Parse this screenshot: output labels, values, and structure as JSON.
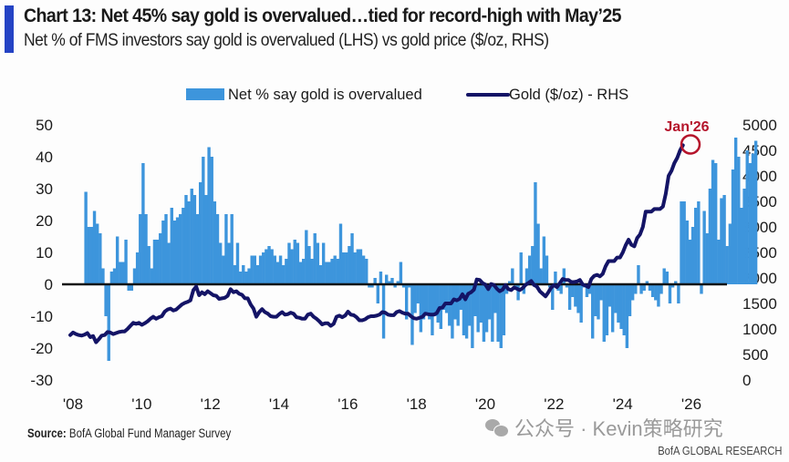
{
  "header": {
    "title": "Chart 13: Net 45% say gold is overvalued…tied for record-high with May’25",
    "subtitle": "Net % of FMS investors say gold is overvalued (LHS) vs gold price ($/oz, RHS)"
  },
  "footer": {
    "source_label": "Source:",
    "source_text": " BofA Global Fund Manager Survey",
    "watermark": "公众号 · Kevin策略研究",
    "brand": "BofA GLOBAL RESEARCH"
  },
  "colors": {
    "bars": "#3d95dc",
    "line": "#141466",
    "annotation": "#b5142b",
    "zero_line": "#111111",
    "title_accent": "#2443c4"
  },
  "chart_data": {
    "type": "bar+line",
    "title": "Chart 13: Net 45% say gold is overvalued…tied for record-high with May’25",
    "subtitle": "Net % of FMS investors say gold is overvalued (LHS) vs gold price ($/oz, RHS)",
    "legend": {
      "position": "top",
      "entries": [
        "Net % say gold is overvalued",
        "Gold ($/oz) - RHS"
      ]
    },
    "x_axis": {
      "tick_labels": [
        "'08",
        "'10",
        "'12",
        "'14",
        "'16",
        "'18",
        "'20",
        "'22",
        "'24",
        "'26"
      ],
      "range": [
        2008.0,
        2026.5
      ]
    },
    "y_left": {
      "label": "Net % say gold is overvalued",
      "ticks": [
        50,
        40,
        30,
        20,
        10,
        0,
        -10,
        -20,
        -30
      ],
      "range": [
        -30,
        50
      ]
    },
    "y_right": {
      "label": "Gold ($/oz)",
      "ticks": [
        5000,
        4500,
        4000,
        3500,
        3000,
        2500,
        2000,
        1500,
        1000,
        500,
        0
      ],
      "range": [
        0,
        5000
      ]
    },
    "annotation": {
      "label": "Jan'26",
      "x": 2026.0,
      "value_lhs": 45,
      "value_rhs": 4600
    },
    "bars": {
      "name": "Net % say gold is overvalued",
      "start": 2008.33,
      "step_months": 1,
      "values": [
        29,
        18,
        18,
        23,
        19,
        16,
        5,
        -10,
        -24,
        4,
        5,
        15,
        7,
        7,
        14,
        -2,
        -2,
        5,
        10,
        22,
        38,
        22,
        12,
        5,
        14,
        14,
        16,
        20,
        22,
        13,
        24,
        20,
        21,
        22,
        24,
        28,
        26,
        30,
        28,
        22,
        32,
        40,
        28,
        43,
        40,
        26,
        22,
        13,
        9,
        22,
        13,
        22,
        6,
        13,
        4,
        6,
        4,
        5,
        9,
        9,
        6,
        9,
        10,
        11,
        12,
        11,
        9,
        7,
        9,
        6,
        8,
        13,
        11,
        14,
        13,
        7,
        8,
        17,
        12,
        8,
        16,
        13,
        6,
        13,
        7,
        7,
        8,
        9,
        8,
        19,
        10,
        10,
        12,
        16,
        10,
        11,
        11,
        9,
        8,
        -1,
        -1,
        2,
        -6,
        4,
        -17,
        3,
        1,
        2,
        -1,
        1,
        7,
        -1,
        -11,
        -1,
        -19,
        -9,
        -6,
        -15,
        -11,
        -9,
        -11,
        -16,
        -10,
        -12,
        -14,
        -8,
        -9,
        -13,
        -17,
        -11,
        -13,
        -8,
        -16,
        -17,
        -13,
        -20,
        -10,
        -15,
        -12,
        -18,
        -15,
        -11,
        -18,
        -9,
        -18,
        -20,
        -16,
        -3,
        1,
        5,
        -1,
        -5,
        10,
        -3,
        5,
        9,
        12,
        32,
        19,
        5,
        15,
        9,
        -1,
        -8,
        4,
        -2,
        -3,
        5,
        -1,
        -8,
        -4,
        -7,
        -9,
        -12,
        -1,
        -4,
        -3,
        -17,
        -10,
        -11,
        -5,
        -18,
        -16,
        -7,
        -15,
        -9,
        -12,
        -14,
        -16,
        -20,
        -10,
        -5,
        -3,
        6,
        -3,
        -2,
        1,
        -2,
        -4,
        -5,
        -7,
        -3,
        5,
        4,
        -6,
        -1,
        1,
        -6,
        26,
        26,
        20,
        14,
        18,
        24,
        26,
        -3,
        23,
        16,
        30,
        39,
        38,
        14,
        27,
        28,
        12,
        19,
        36,
        46,
        40,
        24,
        30,
        42,
        38,
        41,
        45
      ]
    },
    "line": {
      "name": "Gold ($/oz) - RHS",
      "start": 2008.0,
      "step_months": 1,
      "values": [
        880,
        930,
        900,
        880,
        870,
        890,
        920,
        840,
        860,
        740,
        800,
        870,
        880,
        940,
        930,
        900,
        920,
        940,
        950,
        950,
        1000,
        1060,
        1120,
        1100,
        1120,
        1080,
        1110,
        1150,
        1200,
        1240,
        1200,
        1230,
        1250,
        1340,
        1380,
        1400,
        1360,
        1380,
        1430,
        1480,
        1510,
        1530,
        1560,
        1760,
        1830,
        1660,
        1720,
        1680,
        1740,
        1700,
        1660,
        1650,
        1590,
        1600,
        1610,
        1650,
        1780,
        1720,
        1740,
        1690,
        1670,
        1600,
        1600,
        1480,
        1400,
        1240,
        1330,
        1390,
        1330,
        1300,
        1250,
        1240,
        1240,
        1290,
        1330,
        1280,
        1290,
        1320,
        1300,
        1230,
        1220,
        1200,
        1200,
        1280,
        1300,
        1240,
        1200,
        1150,
        1090,
        1110,
        1110,
        1060,
        1100,
        1240,
        1260,
        1230,
        1260,
        1340,
        1280,
        1270,
        1230,
        1170,
        1170,
        1190,
        1230,
        1250,
        1250,
        1260,
        1280,
        1330,
        1320,
        1280,
        1270,
        1270,
        1330,
        1350,
        1320,
        1300,
        1300,
        1250,
        1210,
        1200,
        1220,
        1240,
        1300,
        1290,
        1280,
        1280,
        1310,
        1410,
        1420,
        1500,
        1500,
        1500,
        1580,
        1560,
        1590,
        1680,
        1580,
        1690,
        1720,
        1770,
        1970,
        1960,
        1900,
        1870,
        1780,
        1880,
        1860,
        1790,
        1740,
        1770,
        1860,
        1780,
        1760,
        1810,
        1790,
        1760,
        1800,
        1860,
        1900,
        1940,
        1860,
        1830,
        1740,
        1690,
        1640,
        1720,
        1810,
        1860,
        1820,
        1900,
        1980,
        1960,
        1960,
        1920,
        1920,
        1930,
        1960,
        1870,
        1850,
        1820,
        1980,
        2040,
        2060,
        2030,
        2080,
        2230,
        2330,
        2330,
        2330,
        2400,
        2400,
        2500,
        2640,
        2750,
        2650,
        2620,
        2780,
        2850,
        3000,
        3300,
        3300,
        3300,
        3350,
        3350,
        3350,
        3400,
        3650,
        4000,
        4100,
        4250,
        4350,
        4500,
        4600
      ]
    }
  }
}
